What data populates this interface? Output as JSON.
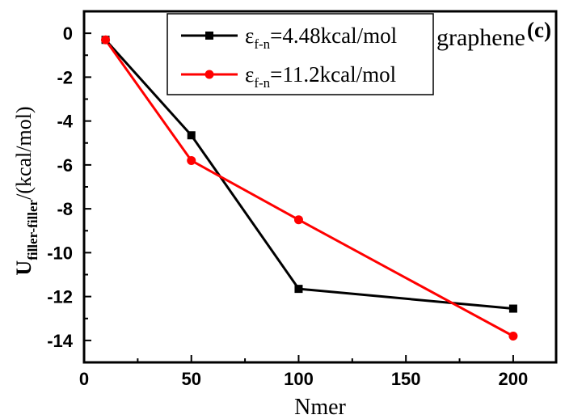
{
  "chart_data": {
    "type": "line",
    "title": "",
    "xlabel": "Nmer",
    "ylabel": {
      "main": "U",
      "subscript": "filler-filler",
      "suffix": "/(kcal/mol)"
    },
    "xlim": [
      0,
      220
    ],
    "ylim": [
      -15,
      1
    ],
    "x_ticks": [
      0,
      50,
      100,
      150,
      200
    ],
    "y_ticks": [
      0,
      -2,
      -4,
      -6,
      -8,
      -10,
      -12,
      -14
    ],
    "x_tick_labels": [
      "0",
      "50",
      "100",
      "150",
      "200"
    ],
    "y_tick_labels": [
      "0",
      "-2",
      "-4",
      "-6",
      "-8",
      "-10",
      "-12",
      "-14"
    ],
    "grid": false,
    "legend_position": "top-right",
    "series": [
      {
        "name": {
          "symbol": "ε",
          "subscript": "f-n",
          "value": "=4.48kcal/mol"
        },
        "color": "#000000",
        "marker": "square",
        "x": [
          10,
          50,
          100,
          200
        ],
        "y": [
          -0.3,
          -4.65,
          -11.65,
          -12.55
        ]
      },
      {
        "name": {
          "symbol": "ε",
          "subscript": "f-n",
          "value": "=11.2kcal/mol"
        },
        "color": "#ff0000",
        "marker": "circle",
        "x": [
          10,
          50,
          100,
          200
        ],
        "y": [
          -0.3,
          -5.8,
          -8.5,
          -13.8
        ]
      }
    ],
    "annotations": [
      {
        "text": "graphene"
      },
      {
        "text": "(c)"
      }
    ]
  }
}
